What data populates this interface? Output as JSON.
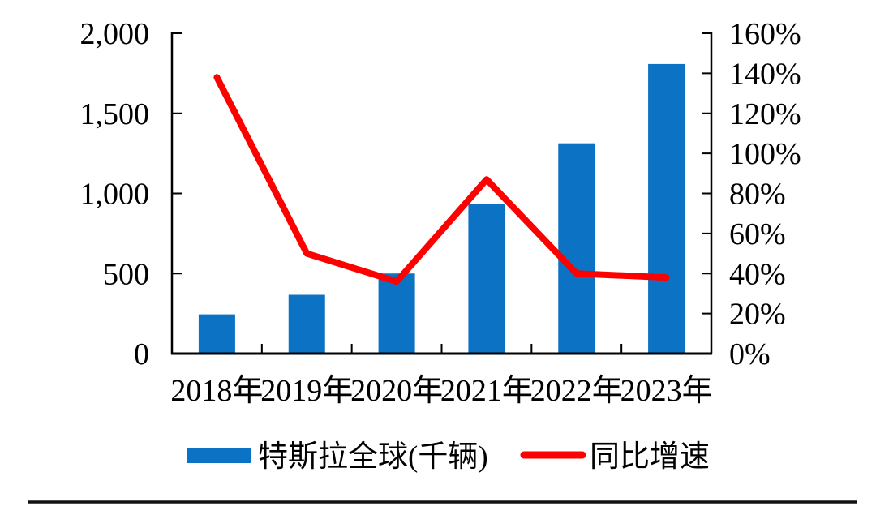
{
  "chart_data": {
    "type": "bar",
    "subtype": "combo-bar-line",
    "categories": [
      "2018年",
      "2019年",
      "2020年",
      "2021年",
      "2022年",
      "2023年"
    ],
    "series": [
      {
        "name": "特斯拉全球(千辆)",
        "type": "bar",
        "axis": "left",
        "color": "#0C72C4",
        "values": [
          245,
          367,
          500,
          936,
          1313,
          1808
        ]
      },
      {
        "name": "同比增速",
        "type": "line",
        "axis": "right",
        "color": "#FE0000",
        "values": [
          138,
          50,
          36,
          87,
          40,
          38
        ],
        "unit": "%"
      }
    ],
    "left_axis": {
      "min": 0,
      "max": 2000,
      "step": 500,
      "tick_labels": [
        "0",
        "500",
        "1,000",
        "1,500",
        "2,000"
      ]
    },
    "right_axis": {
      "min": 0,
      "max": 160,
      "step": 20,
      "tick_labels": [
        "0%",
        "20%",
        "40%",
        "60%",
        "80%",
        "100%",
        "120%",
        "140%",
        "160%"
      ]
    },
    "grid": false,
    "legend_position": "bottom",
    "title": "",
    "xlabel": "",
    "ylabel": ""
  },
  "colors": {
    "bar": "#0C72C4",
    "line": "#FE0000",
    "axis": "#000000",
    "divider": "#111111"
  }
}
